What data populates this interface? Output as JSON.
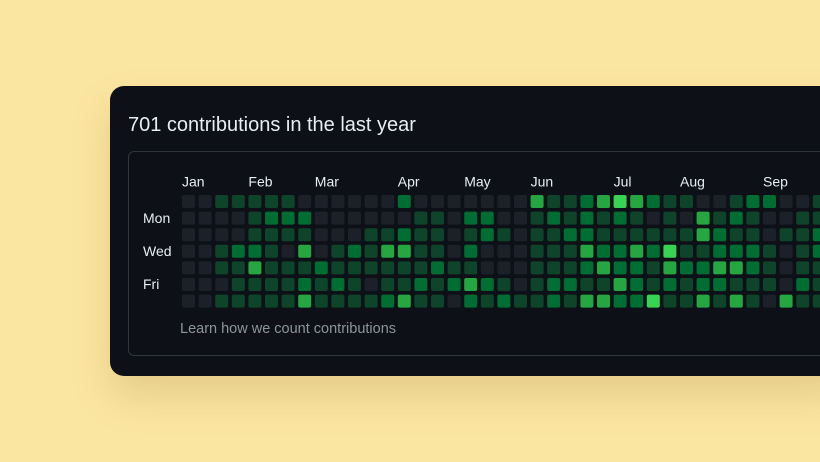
{
  "title": "701 contributions in the last year",
  "months": [
    "Jan",
    "Feb",
    "Mar",
    "Apr",
    "May",
    "Jun",
    "Jul",
    "Aug",
    "Sep"
  ],
  "month_columns": [
    0,
    4,
    8,
    13,
    17,
    21,
    26,
    30,
    35
  ],
  "days": [
    "Mon",
    "Wed",
    "Fri"
  ],
  "day_rows": [
    1,
    3,
    5
  ],
  "footer_link": "Learn how we count contributions",
  "level_colors": [
    "#1c2129",
    "#0e4429",
    "#006d32",
    "#26a641",
    "#39d353"
  ],
  "rows": [
    [
      0,
      0,
      1,
      1,
      1,
      1,
      1,
      0,
      0,
      0,
      0,
      0,
      0,
      2,
      0,
      0,
      0,
      0,
      0,
      0,
      0,
      3,
      1,
      1,
      2,
      3,
      4,
      3,
      2,
      1,
      1,
      0,
      0,
      1,
      2,
      2,
      0,
      0,
      1
    ],
    [
      0,
      0,
      0,
      0,
      1,
      2,
      2,
      2,
      0,
      0,
      0,
      0,
      0,
      0,
      1,
      1,
      0,
      2,
      2,
      0,
      0,
      1,
      2,
      1,
      2,
      1,
      2,
      1,
      0,
      1,
      0,
      3,
      1,
      2,
      1,
      0,
      0,
      1,
      1
    ],
    [
      0,
      0,
      0,
      0,
      1,
      1,
      1,
      1,
      0,
      0,
      0,
      1,
      1,
      2,
      1,
      1,
      0,
      1,
      2,
      1,
      0,
      1,
      1,
      2,
      2,
      1,
      1,
      1,
      1,
      1,
      1,
      3,
      2,
      1,
      1,
      0,
      1,
      1,
      2
    ],
    [
      0,
      0,
      1,
      2,
      2,
      1,
      0,
      3,
      0,
      1,
      2,
      1,
      3,
      3,
      1,
      1,
      0,
      2,
      0,
      0,
      0,
      1,
      1,
      1,
      3,
      2,
      2,
      3,
      2,
      4,
      1,
      1,
      2,
      2,
      2,
      1,
      0,
      1,
      2
    ],
    [
      0,
      0,
      1,
      1,
      3,
      1,
      1,
      1,
      2,
      1,
      1,
      1,
      1,
      1,
      1,
      2,
      1,
      1,
      0,
      0,
      0,
      1,
      1,
      1,
      2,
      3,
      2,
      2,
      1,
      3,
      2,
      2,
      3,
      3,
      2,
      1,
      0,
      1,
      1
    ],
    [
      0,
      0,
      0,
      1,
      1,
      1,
      1,
      2,
      1,
      2,
      1,
      0,
      1,
      1,
      2,
      1,
      2,
      3,
      2,
      1,
      0,
      1,
      2,
      2,
      1,
      1,
      3,
      2,
      1,
      2,
      1,
      2,
      2,
      1,
      1,
      1,
      0,
      2,
      1
    ],
    [
      0,
      0,
      1,
      1,
      1,
      1,
      1,
      3,
      1,
      1,
      1,
      1,
      2,
      3,
      1,
      1,
      0,
      2,
      1,
      2,
      1,
      1,
      2,
      1,
      3,
      3,
      2,
      2,
      4,
      1,
      1,
      3,
      1,
      3,
      1,
      0,
      3,
      1,
      1
    ]
  ]
}
